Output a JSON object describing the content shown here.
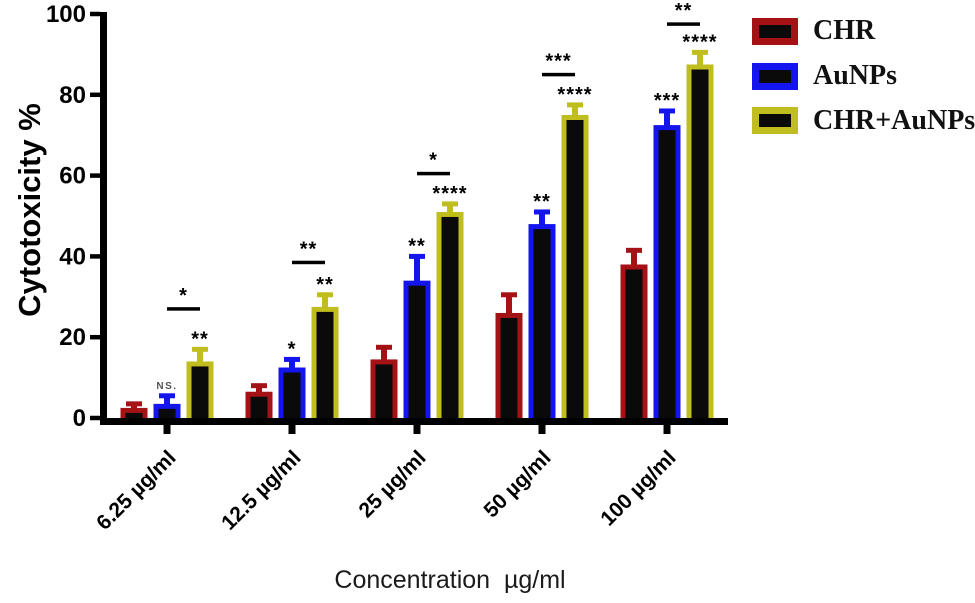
{
  "figure": {
    "background": "#ffffff"
  },
  "chart_data": {
    "type": "bar",
    "title": "",
    "ylabel": "Cytotoxicity %",
    "xlabel": "Concentration  µg/ml",
    "ylim": [
      0,
      100
    ],
    "yticks": [
      0,
      20,
      40,
      60,
      80,
      100
    ],
    "grid": false,
    "legend_position": "right",
    "bar_fill": "#0A0A0A",
    "axis_color": "#000000",
    "ns_label_color": "#555555",
    "categories": [
      "6.25 µg/ml",
      "12.5 µg/ml",
      "25 µg/ml",
      "50 µg/ml",
      "100 µg/ml"
    ],
    "series": [
      {
        "name": "CHR",
        "color": "#A41216",
        "values": [
          2.5,
          6.5,
          14.5,
          26,
          38
        ],
        "errors": [
          1,
          1.5,
          3,
          4.5,
          3.5
        ],
        "annotations": [
          "",
          "",
          "",
          "",
          ""
        ]
      },
      {
        "name": "AuNPs",
        "color": "#1414EE",
        "values": [
          3.5,
          12.5,
          34,
          48,
          72.5
        ],
        "errors": [
          2,
          2,
          6,
          3,
          3.5
        ],
        "annotations": [
          "NS.",
          "*",
          "**",
          "**",
          "***"
        ]
      },
      {
        "name": "CHR+AuNPs",
        "color": "#BFBE1E",
        "values": [
          14,
          27.5,
          51,
          75,
          87.5
        ],
        "errors": [
          3,
          3,
          2,
          2.5,
          3
        ],
        "annotations": [
          "**",
          "**",
          "****",
          "****",
          "****"
        ]
      }
    ],
    "comparison_brackets": [
      {
        "category_index": 0,
        "from_series": 1,
        "to_series": 2,
        "label": "*",
        "y": 27
      },
      {
        "category_index": 1,
        "from_series": 1,
        "to_series": 2,
        "label": "**",
        "y": 38.5
      },
      {
        "category_index": 2,
        "from_series": 1,
        "to_series": 2,
        "label": "*",
        "y": 60.5
      },
      {
        "category_index": 3,
        "from_series": 1,
        "to_series": 2,
        "label": "***",
        "y": 85
      },
      {
        "category_index": 4,
        "from_series": 1,
        "to_series": 2,
        "label": "**",
        "y": 97.5
      }
    ]
  }
}
